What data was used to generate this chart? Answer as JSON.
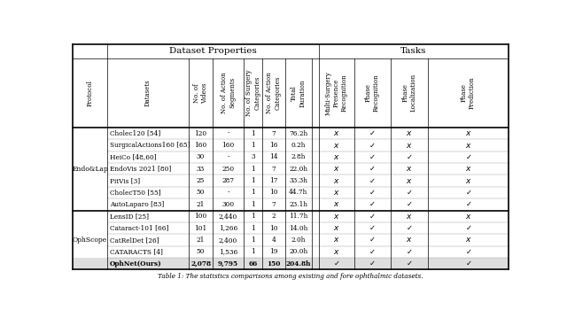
{
  "caption": "Table 1: The statistics comparisons among existing and fore ophthalmic datasets.",
  "protocol_groups": [
    {
      "protocol": "Endo&Lap",
      "rows": [
        [
          "Cholec120 [54]",
          "120",
          "-",
          "1",
          "7",
          "76.2h",
          "x",
          "v",
          "x",
          "x"
        ],
        [
          "SurgicalActions160 [65]",
          "160",
          "160",
          "1",
          "16",
          "0.2h",
          "x",
          "v",
          "x",
          "x"
        ],
        [
          "HeiCo [48,60]",
          "30",
          "-",
          "3",
          "14",
          "2.8h",
          "x",
          "v",
          "v",
          "v"
        ],
        [
          "EndoVis 2021 [80]",
          "33",
          "250",
          "1",
          "7",
          "22.0h",
          "x",
          "v",
          "x",
          "x"
        ],
        [
          "PitVis [3]",
          "25",
          "287",
          "1",
          "17",
          "33.3h",
          "x",
          "v",
          "x",
          "x"
        ],
        [
          "CholecT50 [55]",
          "50",
          "-",
          "1",
          "10",
          "44.7h",
          "x",
          "v",
          "v",
          "v"
        ],
        [
          "AutoLaparo [83]",
          "21",
          "300",
          "1",
          "7",
          "23.1h",
          "x",
          "v",
          "v",
          "v"
        ]
      ]
    },
    {
      "protocol": "OphScope",
      "rows": [
        [
          "LensID [25]",
          "100",
          "2,440",
          "1",
          "2",
          "11.7h",
          "x",
          "v",
          "x",
          "x"
        ],
        [
          "Cataract-101 [66]",
          "101",
          "1,266",
          "1",
          "10",
          "14.0h",
          "x",
          "v",
          "v",
          "v"
        ],
        [
          "CatRelDet [26]",
          "21",
          "2,400",
          "1",
          "4",
          "2.0h",
          "x",
          "v",
          "x",
          "x"
        ],
        [
          "CATARACTS [4]",
          "50",
          "1,536",
          "1",
          "19",
          "20.0h",
          "x",
          "v",
          "v",
          "v"
        ],
        [
          "OphNet(Ours)",
          "2,078",
          "9,795",
          "66",
          "150",
          "204.8h",
          "v",
          "v",
          "v",
          "v"
        ]
      ]
    }
  ],
  "col_headers_rotated": [
    "Protocol",
    "Datasets",
    "No. of Videos",
    "No. of Action\nSegments",
    "No. of Surgery\nCategories",
    "No. of Action\nCategories",
    "Total\nDuration",
    "Multi-Surgery\nPresence\nRecognition",
    "Phase\nRecognition",
    "Phase\nLocalization",
    "Phase\nPrediction"
  ],
  "lw_thick": 1.2,
  "lw_thin": 0.5,
  "lw_row": 0.3,
  "header1_label_dp": "Dataset Properties",
  "header1_label_tasks": "Tasks",
  "ophnet_bg": "#dedede",
  "table_bg": "white"
}
